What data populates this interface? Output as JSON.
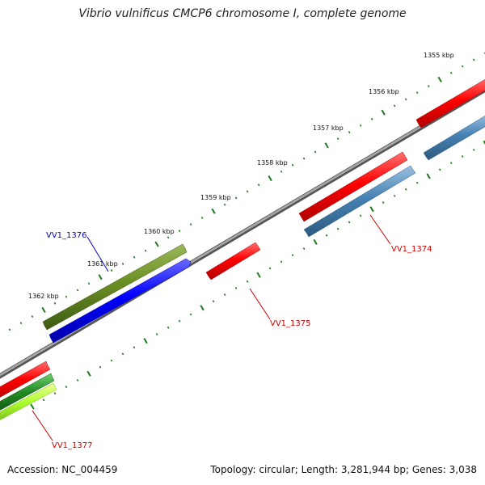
{
  "title": "Vibrio vulnificus CMCP6 chromosome I, complete genome",
  "accession": "Accession: NC_004459",
  "summary": "Topology: circular; Length: 3,281,944 bp; Genes: 3,038",
  "ruler_labels": [
    "1355 kbp",
    "1356 kbp",
    "1357 kbp",
    "1358 kbp",
    "1359 kbp",
    "1360 kbp",
    "1361 kbp",
    "1362 kbp"
  ],
  "colors": {
    "gene_forward": "#ff0000",
    "gene_reverse": "#4682b4",
    "highlight_gene": "#556b2f",
    "highlight_cds": "#0000ff",
    "other_green": "#228b22",
    "other_lime": "#adff2f",
    "backbone": "#808080",
    "ticks": "#1a7a1a",
    "label_blue": "#0000cc",
    "label_red": "#cc0000"
  },
  "gene_labels": [
    {
      "id": "vv1_1376",
      "text": "VV1_1376",
      "color": "blue"
    },
    {
      "id": "vv1_1374",
      "text": "VV1_1374",
      "color": "red"
    },
    {
      "id": "vv1_1375",
      "text": "VV1_1375",
      "color": "red"
    },
    {
      "id": "vv1_1377",
      "text": "VV1_1377",
      "color": "red"
    }
  ]
}
